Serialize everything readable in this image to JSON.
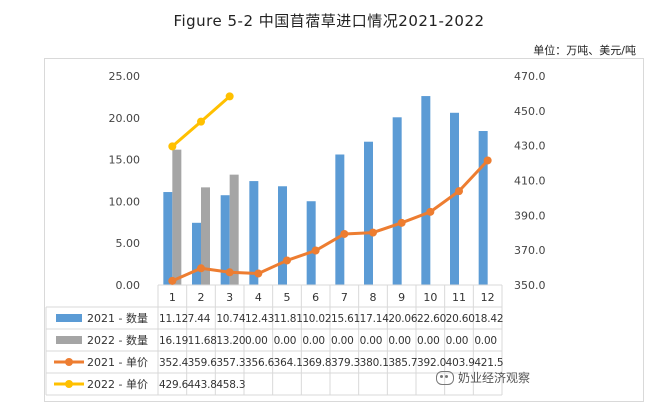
{
  "header": {
    "title": "Figure 5-2  中国苜蓿草进口情况2021-2022",
    "unit": "单位：万吨、美元/吨"
  },
  "watermark": {
    "text": "奶业经济观察"
  },
  "chart_data": {
    "type": "bar",
    "categories": [
      "1",
      "2",
      "3",
      "4",
      "5",
      "6",
      "7",
      "8",
      "9",
      "10",
      "11",
      "12"
    ],
    "left_axis": {
      "min": 0,
      "max": 25,
      "step": 5,
      "ticks": [
        "0.00",
        "5.00",
        "10.00",
        "15.00",
        "20.00",
        "25.00"
      ]
    },
    "right_axis": {
      "min": 350,
      "max": 470,
      "step": 20,
      "ticks": [
        "350.0",
        "370.0",
        "390.0",
        "410.0",
        "430.0",
        "450.0",
        "470.0"
      ]
    },
    "series": [
      {
        "name": "2021 - 数量",
        "kind": "bar",
        "axis": "left",
        "color": "#5b9bd5",
        "values": [
          11.12,
          7.44,
          10.74,
          12.43,
          11.81,
          10.02,
          15.61,
          17.14,
          20.06,
          22.6,
          20.6,
          18.42
        ],
        "labels": [
          "11.12",
          "7.44",
          "10.74",
          "12.43",
          "11.81",
          "10.02",
          "15.61",
          "17.14",
          "20.06",
          "22.60",
          "20.60",
          "18.42"
        ]
      },
      {
        "name": "2022 - 数量",
        "kind": "bar",
        "axis": "left",
        "color": "#a5a5a5",
        "values": [
          16.19,
          11.68,
          13.2,
          0,
          0,
          0,
          0,
          0,
          0,
          0,
          0,
          0
        ],
        "labels": [
          "16.19",
          "11.68",
          "13.20",
          "0.00",
          "0.00",
          "0.00",
          "0.00",
          "0.00",
          "0.00",
          "0.00",
          "0.00",
          "0.00"
        ]
      },
      {
        "name": "2021 - 单价",
        "kind": "line",
        "axis": "right",
        "color": "#ed7d31",
        "values": [
          352.4,
          359.6,
          357.3,
          356.6,
          364.1,
          369.8,
          379.3,
          380.1,
          385.7,
          392.0,
          403.9,
          421.5
        ],
        "labels": [
          "352.4",
          "359.6",
          "357.3",
          "356.6",
          "364.1",
          "369.8",
          "379.3",
          "380.1",
          "385.7",
          "392.0",
          "403.9",
          "421.5"
        ]
      },
      {
        "name": "2022 - 单价",
        "kind": "line",
        "axis": "right",
        "color": "#ffc000",
        "values": [
          429.6,
          443.8,
          458.3,
          null,
          null,
          null,
          null,
          null,
          null,
          null,
          null,
          null
        ],
        "labels": [
          "429.6",
          "443.8",
          "458.3",
          "",
          "",
          "",
          "",
          "",
          "",
          "",
          "",
          ""
        ]
      }
    ],
    "grid": false,
    "legend": "data-table-below"
  }
}
